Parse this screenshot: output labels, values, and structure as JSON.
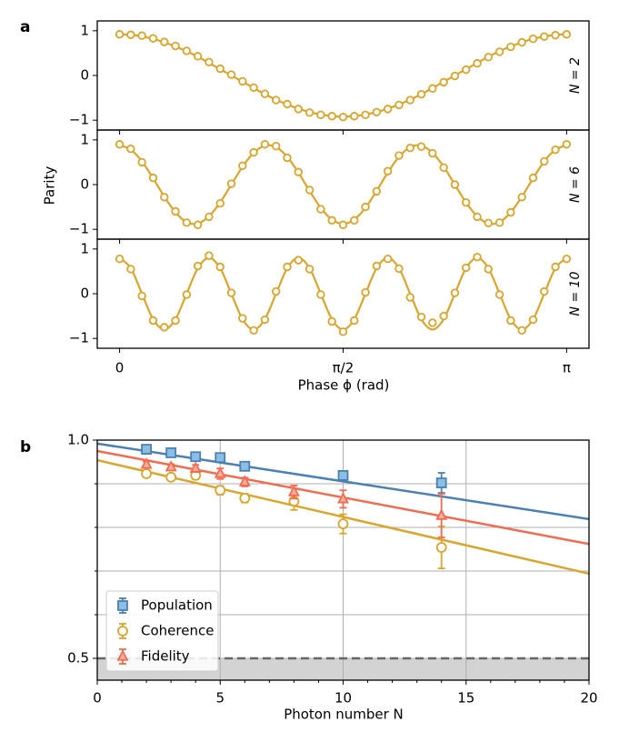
{
  "chart_data": [
    {
      "type": "stacked-scatter",
      "panel": "a",
      "xlabel": "Phase ϕ (rad)",
      "ylabel": "Parity",
      "color": "#dba52b",
      "xlim": [
        -0.157,
        3.299
      ],
      "xticks": [
        0,
        {
          "value": 1.5708,
          "label": "π/2"
        },
        {
          "value": 3.1416,
          "label": "π"
        }
      ],
      "x": [
        0,
        0.0785,
        0.1571,
        0.2356,
        0.3142,
        0.3927,
        0.4712,
        0.5498,
        0.6283,
        0.7069,
        0.7854,
        0.8639,
        0.9425,
        1.021,
        1.0996,
        1.1781,
        1.2566,
        1.3352,
        1.4137,
        1.4923,
        1.5708,
        1.6493,
        1.7279,
        1.8064,
        1.885,
        1.9635,
        2.042,
        2.1206,
        2.1991,
        2.2777,
        2.3562,
        2.4347,
        2.5133,
        2.5918,
        2.6704,
        2.7489,
        2.8274,
        2.906,
        2.9845,
        3.0631,
        3.1416
      ],
      "ylim": [
        -1.22,
        1.22
      ],
      "yticks": [
        {
          "value": -1,
          "label": "−1"
        },
        0,
        1
      ],
      "subplots": [
        {
          "label": "N = 2",
          "values": [
            0.92,
            0.91,
            0.89,
            0.83,
            0.75,
            0.66,
            0.55,
            0.43,
            0.3,
            0.15,
            0.02,
            -0.13,
            -0.27,
            -0.41,
            -0.55,
            -0.64,
            -0.75,
            -0.83,
            -0.88,
            -0.91,
            -0.93,
            -0.91,
            -0.88,
            -0.82,
            -0.75,
            -0.66,
            -0.55,
            -0.42,
            -0.29,
            -0.15,
            -0.01,
            0.13,
            0.27,
            0.41,
            0.53,
            0.64,
            0.74,
            0.82,
            0.87,
            0.9,
            0.92
          ],
          "fit": [
            0.92,
            0.91,
            0.87,
            0.82,
            0.74,
            0.65,
            0.54,
            0.42,
            0.28,
            0.14,
            0,
            -0.14,
            -0.28,
            -0.42,
            -0.54,
            -0.65,
            -0.74,
            -0.82,
            -0.87,
            -0.91,
            -0.92,
            -0.91,
            -0.87,
            -0.82,
            -0.74,
            -0.65,
            -0.54,
            -0.42,
            -0.28,
            -0.14,
            0,
            0.14,
            0.28,
            0.42,
            0.54,
            0.65,
            0.74,
            0.82,
            0.87,
            0.91,
            0.92
          ]
        },
        {
          "label": "N = 6",
          "values": [
            0.9,
            0.8,
            0.5,
            0.15,
            -0.28,
            -0.6,
            -0.85,
            -0.9,
            -0.72,
            -0.42,
            0.02,
            0.42,
            0.72,
            0.9,
            0.86,
            0.6,
            0.28,
            -0.12,
            -0.55,
            -0.8,
            -0.9,
            -0.8,
            -0.5,
            -0.15,
            0.3,
            0.65,
            0.82,
            0.85,
            0.7,
            0.38,
            0,
            -0.4,
            -0.72,
            -0.86,
            -0.85,
            -0.62,
            -0.28,
            0.15,
            0.52,
            0.78,
            0.9
          ],
          "fit": [
            0.88,
            0.78,
            0.52,
            0.14,
            -0.27,
            -0.62,
            -0.84,
            -0.87,
            -0.71,
            -0.4,
            0,
            0.4,
            0.71,
            0.87,
            0.84,
            0.62,
            0.27,
            -0.14,
            -0.52,
            -0.78,
            -0.88,
            -0.78,
            -0.52,
            -0.14,
            0.27,
            0.62,
            0.84,
            0.87,
            0.71,
            0.4,
            0,
            -0.4,
            -0.71,
            -0.87,
            -0.84,
            -0.62,
            -0.27,
            0.14,
            0.52,
            0.78,
            0.88
          ]
        },
        {
          "label": "N = 10",
          "values": [
            0.78,
            0.55,
            -0.05,
            -0.6,
            -0.75,
            -0.6,
            -0.02,
            0.62,
            0.85,
            0.6,
            0.02,
            -0.55,
            -0.82,
            -0.58,
            0.05,
            0.6,
            0.75,
            0.55,
            -0.02,
            -0.62,
            -0.85,
            -0.6,
            0.03,
            0.62,
            0.78,
            0.56,
            -0.08,
            -0.52,
            -0.65,
            -0.5,
            0.02,
            0.58,
            0.82,
            0.55,
            -0.02,
            -0.6,
            -0.82,
            -0.58,
            0.05,
            0.6,
            0.78
          ],
          "fit": [
            0.8,
            0.57,
            0,
            -0.57,
            -0.8,
            -0.57,
            0,
            0.57,
            0.8,
            0.57,
            0,
            -0.57,
            -0.8,
            -0.57,
            0,
            0.57,
            0.8,
            0.57,
            0,
            -0.57,
            -0.8,
            -0.57,
            0,
            0.57,
            0.8,
            0.57,
            0,
            -0.57,
            -0.8,
            -0.57,
            0,
            0.57,
            0.8,
            0.57,
            0,
            -0.57,
            -0.8,
            -0.57,
            0,
            0.57,
            0.8
          ]
        }
      ]
    },
    {
      "type": "errorbar",
      "panel": "b",
      "xlabel": "Photon number N",
      "xlim": [
        0,
        20
      ],
      "xticks": [
        0,
        5,
        10,
        15,
        20
      ],
      "xminor_ticks": [
        1,
        2,
        3,
        4,
        6,
        7,
        8,
        9,
        11,
        12,
        13,
        14,
        16,
        17,
        18,
        19
      ],
      "ylim": [
        0.45,
        1.0
      ],
      "yticks": [
        0.5,
        {
          "value": 1.0,
          "label": "1.0"
        }
      ],
      "yminor_ticks": [
        0.6,
        0.7,
        0.8,
        0.9
      ],
      "grid": true,
      "threshold": 0.5,
      "legend": "lower left",
      "fit_x": [
        0,
        20
      ],
      "series": [
        {
          "name": "Population",
          "color": "#4a80b3",
          "fill": "#8cbde3",
          "marker": "square",
          "x": [
            2,
            3,
            4,
            5,
            6,
            10,
            14
          ],
          "values": [
            0.979,
            0.971,
            0.962,
            0.96,
            0.94,
            0.919,
            0.902
          ],
          "errors": [
            0.006,
            0.006,
            0.006,
            0.007,
            0.007,
            0.008,
            0.023
          ],
          "fit": [
            0.992,
            0.819
          ]
        },
        {
          "name": "Coherence",
          "color": "#dba52b",
          "fill": "#ffffff",
          "marker": "circle",
          "x": [
            2,
            3,
            4,
            5,
            6,
            8,
            10,
            14
          ],
          "values": [
            0.923,
            0.915,
            0.919,
            0.885,
            0.867,
            0.86,
            0.808,
            0.754
          ],
          "errors": [
            0.007,
            0.007,
            0.008,
            0.01,
            0.01,
            0.02,
            0.022,
            0.048
          ],
          "fit": [
            0.954,
            0.694
          ]
        },
        {
          "name": "Fidelity",
          "color": "#f26b4f",
          "fill": "#f9b0a2",
          "marker": "triangle",
          "x": [
            2,
            3,
            4,
            5,
            6,
            8,
            10,
            14
          ],
          "values": [
            0.944,
            0.938,
            0.935,
            0.923,
            0.904,
            0.881,
            0.865,
            0.827
          ],
          "errors": [
            0.007,
            0.007,
            0.008,
            0.012,
            0.01,
            0.015,
            0.02,
            0.05
          ],
          "fit": [
            0.975,
            0.762
          ]
        }
      ]
    }
  ]
}
